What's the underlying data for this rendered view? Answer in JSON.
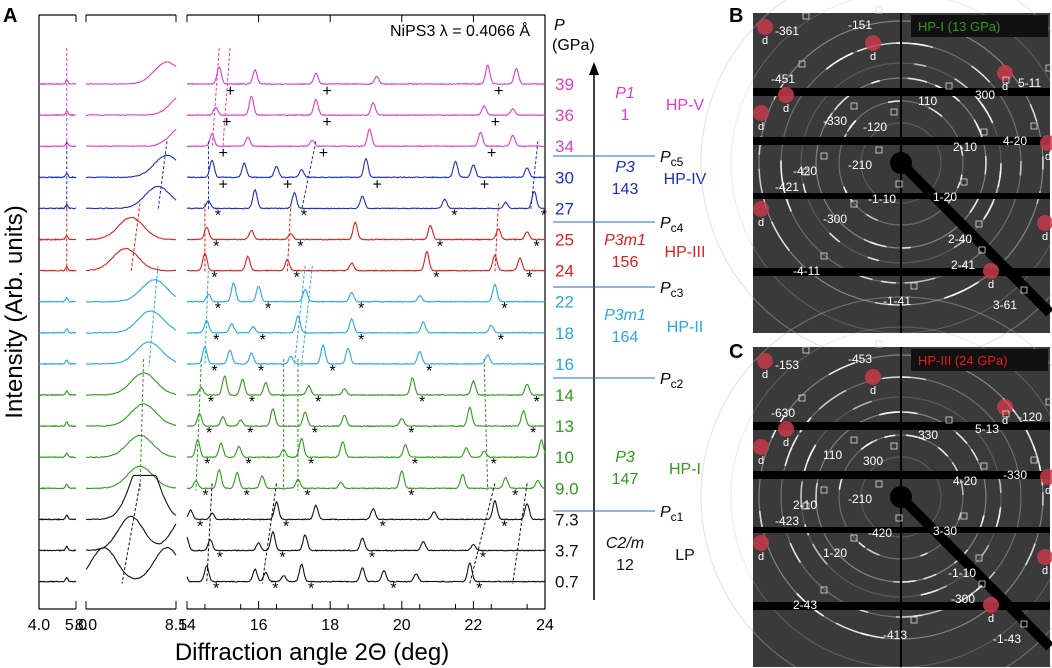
{
  "panels": {
    "a": "A",
    "b": "B",
    "c": "C"
  },
  "chart_data": {
    "type": "line",
    "title": "NiPS3  λ = 0.4066 Å",
    "xlabel": "Diffraction angle 2Θ (deg)",
    "ylabel": "Intensity (Arb. units)",
    "p_header": [
      "P",
      "(GPa)"
    ],
    "segments": [
      {
        "range": [
          4.0,
          5.0
        ],
        "ticks": [
          "4.0",
          "5.0"
        ]
      },
      {
        "range": [
          8.0,
          8.5
        ],
        "ticks": [
          "8.0",
          "8.5"
        ]
      },
      {
        "range": [
          14,
          24
        ],
        "ticks": [
          "14",
          "16",
          "18",
          "20",
          "22",
          "24"
        ]
      }
    ],
    "series": [
      {
        "name": "39",
        "phase": "HP-V",
        "color": "#e03cc8"
      },
      {
        "name": "36",
        "phase": "HP-V",
        "color": "#e03cc8"
      },
      {
        "name": "34",
        "phase": "HP-V",
        "color": "#e03cc8"
      },
      {
        "name": "30",
        "phase": "HP-IV",
        "color": "#1b2fbf"
      },
      {
        "name": "27",
        "phase": "HP-IV",
        "color": "#1b2fbf"
      },
      {
        "name": "25",
        "phase": "HP-III",
        "color": "#e51c1c"
      },
      {
        "name": "24",
        "phase": "HP-III",
        "color": "#e51c1c"
      },
      {
        "name": "22",
        "phase": "HP-II",
        "color": "#28a8e0"
      },
      {
        "name": "18",
        "phase": "HP-II",
        "color": "#28a8e0"
      },
      {
        "name": "16",
        "phase": "HP-II",
        "color": "#28a8e0"
      },
      {
        "name": "14",
        "phase": "HP-I",
        "color": "#2f9a1e"
      },
      {
        "name": "13",
        "phase": "HP-I",
        "color": "#2f9a1e"
      },
      {
        "name": "10",
        "phase": "HP-I",
        "color": "#2f9a1e"
      },
      {
        "name": "9.0",
        "phase": "HP-I",
        "color": "#2f9a1e"
      },
      {
        "name": "7.3",
        "phase": "LP",
        "color": "#111111"
      },
      {
        "name": "3.7",
        "phase": "LP",
        "color": "#111111"
      },
      {
        "name": "0.7",
        "phase": "LP",
        "color": "#111111"
      }
    ],
    "phases": [
      {
        "sg": "P1",
        "num": "1",
        "name": "HP-V",
        "color": "#e03cc8"
      },
      {
        "sg": "P3",
        "num": "143",
        "name": "HP-IV",
        "color": "#1b2fbf"
      },
      {
        "sg": "P3m1",
        "num": "156",
        "name": "HP-III",
        "color": "#e51c1c"
      },
      {
        "sg": "P3m1",
        "num": "164",
        "name": "HP-II",
        "color": "#28a8e0"
      },
      {
        "sg": "P3",
        "num": "147",
        "name": "HP-I",
        "color": "#2f9a1e"
      },
      {
        "sg": "C2/m",
        "num": "12",
        "name": "LP",
        "color": "#111111"
      }
    ],
    "transitions": [
      "Pc5",
      "Pc4",
      "Pc3",
      "Pc2",
      "Pc1"
    ],
    "peaks_deg": {
      "0.7": [
        8.1,
        8.45,
        13.9,
        14.55,
        15.9,
        16.2,
        16.7,
        17.2,
        18.9,
        19.5,
        20.4,
        21.9
      ],
      "3.7": [
        8.25,
        8.55,
        13.98,
        14.65,
        16.0,
        16.4,
        17.3,
        18.9,
        20.6,
        22.0
      ],
      "7.3": [
        8.3,
        8.35,
        14.1,
        14.7,
        16.5,
        17.6,
        19.2,
        20.9,
        22.6,
        23.5
      ],
      "9.0": [
        8.3,
        14.25,
        14.9,
        15.4,
        16.1,
        17.1,
        18.3,
        20.0,
        21.7,
        22.9,
        23.8
      ],
      "10": [
        8.3,
        14.3,
        14.95,
        15.45,
        16.7,
        17.2,
        18.35,
        20.1,
        21.8,
        22.3,
        23.9
      ],
      "13": [
        8.32,
        14.35,
        15.0,
        15.5,
        16.4,
        17.3,
        18.4,
        20.0,
        21.9,
        23.4
      ],
      "14": [
        8.32,
        14.4,
        15.05,
        15.55,
        16.2,
        17.4,
        18.4,
        20.3,
        22.0,
        23.5
      ],
      "16": [
        8.35,
        14.5,
        15.2,
        15.8,
        16.9,
        17.8,
        18.5,
        20.5,
        22.4
      ],
      "18": [
        8.36,
        14.55,
        15.25,
        15.85,
        17.1,
        18.6,
        20.6,
        22.5
      ],
      "22": [
        8.38,
        14.6,
        15.3,
        16.0,
        17.3,
        18.6,
        20.5,
        22.6
      ],
      "24": [
        8.22,
        14.5,
        15.7,
        16.8,
        18.6,
        20.7,
        22.6,
        23.3
      ],
      "25": [
        8.25,
        14.55,
        15.8,
        16.9,
        18.7,
        20.8,
        22.7,
        23.5
      ],
      "27": [
        8.4,
        14.6,
        15.9,
        17.0,
        18.9,
        21.2,
        22.9,
        23.7
      ],
      "30": [
        8.45,
        14.7,
        15.6,
        16.5,
        17.2,
        19.0,
        21.5,
        22.0,
        23.5
      ],
      "34": [
        8.55,
        14.7,
        15.7,
        17.5,
        19.1,
        22.2,
        23.1
      ],
      "36": [
        8.55,
        14.8,
        15.8,
        17.6,
        19.2,
        22.3,
        23.1
      ],
      "39": [
        8.45,
        14.9,
        15.9,
        17.6,
        19.3,
        22.4,
        23.2
      ]
    },
    "patterns": [
      {
        "panel": "B",
        "title": "HP-I (13 GPa)",
        "title_color": "#2f9a1e",
        "indices": [
          "-361",
          "-151",
          "-451",
          "110",
          "300",
          "5-11",
          "-330",
          "-120",
          "4-20",
          "2-10",
          "-210",
          "-420",
          "-421",
          "-1-10",
          "1-20",
          "-300",
          "2-40",
          "2-41",
          "-4-11",
          "-1-41",
          "3-61"
        ]
      },
      {
        "panel": "C",
        "title": "HP-III (24 GPa)",
        "title_color": "#e51c1c",
        "indices": [
          "-153",
          "-453",
          "-630",
          "330",
          "5-13",
          "-120",
          "110",
          "300",
          "-330",
          "4-20",
          "-210",
          "2-10",
          "-423",
          "-420",
          "3-30",
          "1-20",
          "-1-10",
          "-300",
          "2-43",
          "-413",
          "-1-43"
        ]
      }
    ],
    "diamond_label": "d"
  }
}
